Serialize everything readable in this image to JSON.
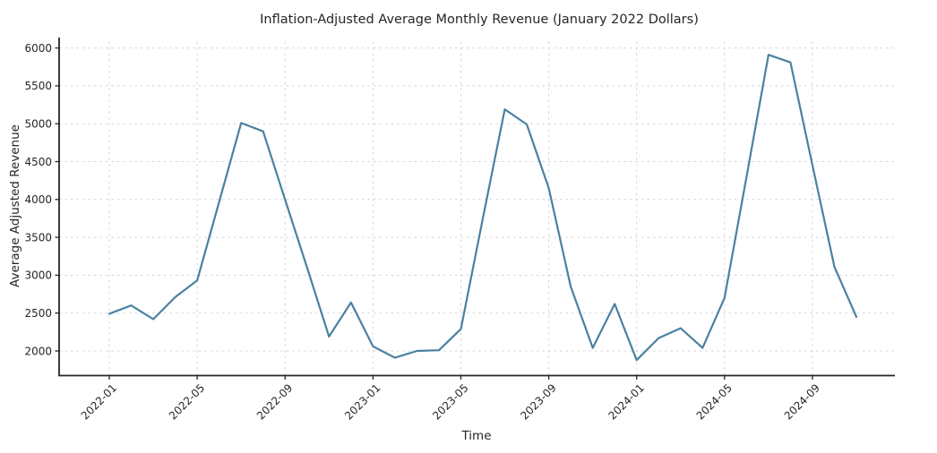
{
  "chart_data": {
    "type": "line",
    "title": "Inflation-Adjusted Average Monthly Revenue (January 2022 Dollars)",
    "xlabel": "Time",
    "ylabel": "Average Adjusted Revenue",
    "x": [
      "2022-01",
      "2022-02",
      "2022-03",
      "2022-04",
      "2022-05",
      "2022-06",
      "2022-07",
      "2022-08",
      "2022-09",
      "2022-10",
      "2022-11",
      "2022-12",
      "2023-01",
      "2023-02",
      "2023-03",
      "2023-04",
      "2023-05",
      "2023-06",
      "2023-07",
      "2023-08",
      "2023-09",
      "2023-10",
      "2023-11",
      "2023-12",
      "2024-01",
      "2024-02",
      "2024-03",
      "2024-04",
      "2024-05",
      "2024-06",
      "2024-07",
      "2024-08",
      "2024-09",
      "2024-10",
      "2024-11"
    ],
    "values": [
      2490,
      2600,
      2420,
      2710,
      2930,
      3970,
      5010,
      4900,
      4000,
      3100,
      2190,
      2640,
      2060,
      1910,
      2000,
      2010,
      2290,
      3750,
      5190,
      4990,
      4150,
      2850,
      2040,
      2620,
      1880,
      2170,
      2300,
      2040,
      2700,
      4300,
      5910,
      5810,
      4450,
      3110,
      2450
    ],
    "x_tick_labels": [
      "2022-01",
      "2022-05",
      "2022-09",
      "2023-01",
      "2023-05",
      "2023-09",
      "2024-01",
      "2024-05",
      "2024-09"
    ],
    "y_ticks": [
      2000,
      2500,
      3000,
      3500,
      4000,
      4500,
      5000,
      5500,
      6000
    ],
    "ylim": [
      1680,
      6140
    ],
    "grid": true,
    "legend_position": "none",
    "line_color": "#4a81a1",
    "text_color": "#262626"
  }
}
